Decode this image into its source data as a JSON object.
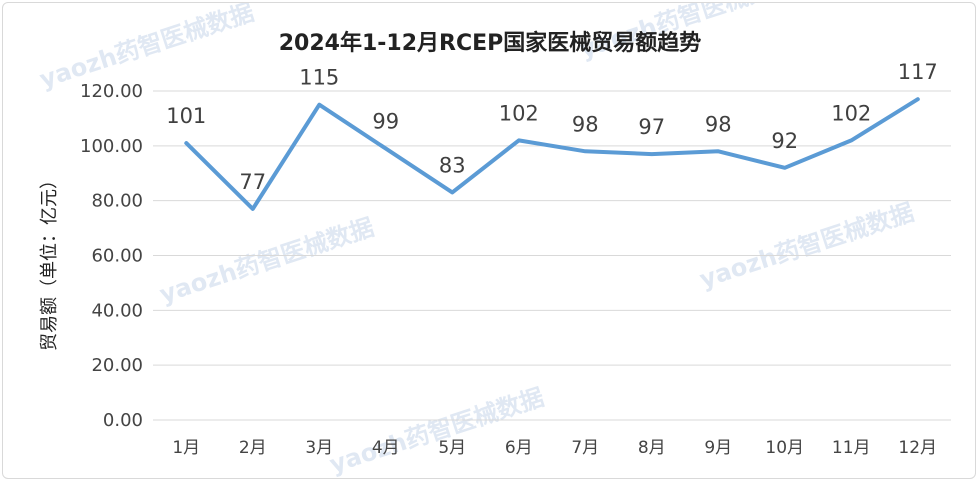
{
  "chart_data": {
    "type": "line",
    "title": "2024年1-12月RCEP国家医械贸易额趋势",
    "ylabel": "贸易额（单位：亿元）",
    "xlabel": "",
    "categories": [
      "1月",
      "2月",
      "3月",
      "4月",
      "5月",
      "6月",
      "7月",
      "8月",
      "9月",
      "10月",
      "11月",
      "12月"
    ],
    "series": [
      {
        "values": [
          101,
          77,
          115,
          99,
          83,
          102,
          98,
          97,
          98,
          92,
          102,
          117
        ]
      }
    ],
    "data_labels": [
      "101",
      "77",
      "115",
      "99",
      "83",
      "102",
      "98",
      "97",
      "98",
      "92",
      "102",
      "117"
    ],
    "ylim": [
      0,
      120
    ],
    "yticks": [
      "0.00",
      "20.00",
      "40.00",
      "60.00",
      "80.00",
      "100.00",
      "120.00"
    ],
    "ytick_values": [
      0,
      20,
      40,
      60,
      80,
      100,
      120
    ],
    "grid": true,
    "legend": "none",
    "line_color": "#5b9bd5"
  },
  "watermarks": [
    "yaozh药智医械数据",
    "yaozh药智医械数据",
    "yaozh药智医械数据",
    "yaozh药智医械数据",
    "yaozh药智医械数据"
  ]
}
